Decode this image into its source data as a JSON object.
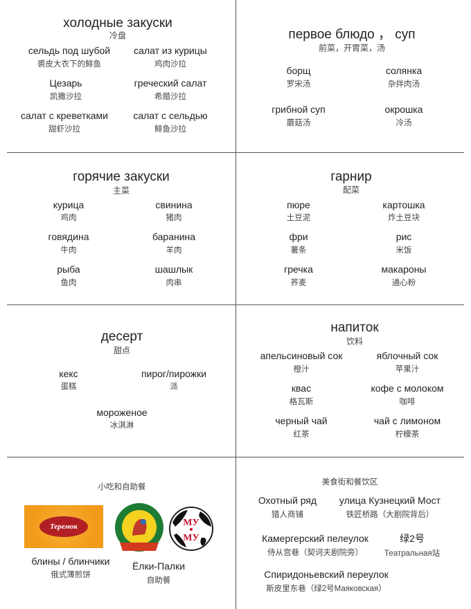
{
  "sections": [
    {
      "title": "холодные закуски",
      "subtitle": "冷盘",
      "items": [
        {
          "ru": "сельдь под шубой",
          "zh": "裘皮大衣下的鲱鱼"
        },
        {
          "ru": "салат из курицы",
          "zh": "鸡肉沙拉"
        },
        {
          "ru": "Цезарь",
          "zh": "凯撒沙拉"
        },
        {
          "ru": "греческий салат",
          "zh": "希腊沙拉"
        },
        {
          "ru": "салат с креветками",
          "zh": "甜虾沙拉"
        },
        {
          "ru": "салат с сельдью",
          "zh": "鲱鱼沙拉"
        }
      ]
    },
    {
      "title": "первое блюдо ， суп",
      "subtitle": "前菜，开胃菜，汤",
      "items": [
        {
          "ru": "борщ",
          "zh": "罗宋汤"
        },
        {
          "ru": "солянка",
          "zh": "杂拌肉汤"
        },
        {
          "ru": "грибной суп",
          "zh": "蘑菇汤"
        },
        {
          "ru": "окрошка",
          "zh": "冷汤"
        }
      ]
    },
    {
      "title": "горячие закуски",
      "subtitle": "主菜",
      "items": [
        {
          "ru": "курица",
          "zh": "鸡肉"
        },
        {
          "ru": "свинина",
          "zh": "猪肉"
        },
        {
          "ru": "говядина",
          "zh": "牛肉"
        },
        {
          "ru": "баранина",
          "zh": "羊肉"
        },
        {
          "ru": "рыба",
          "zh": "鱼肉"
        },
        {
          "ru": "шашлык",
          "zh": "肉串"
        }
      ]
    },
    {
      "title": "гарнир",
      "subtitle": "配菜",
      "items": [
        {
          "ru": "пюре",
          "zh": "土豆泥"
        },
        {
          "ru": "картошка",
          "zh": "炸土豆块"
        },
        {
          "ru": "фри",
          "zh": "薯条"
        },
        {
          "ru": "рис",
          "zh": "米饭"
        },
        {
          "ru": "гречка",
          "zh": "荞麦"
        },
        {
          "ru": "макароны",
          "zh": "通心粉"
        }
      ]
    },
    {
      "title": "десерт",
      "subtitle": "甜点",
      "items": [
        {
          "ru": "кекс",
          "zh": "蛋糕"
        },
        {
          "ru": "пирог/пирожки",
          "zh": "派"
        },
        {
          "ru": "мороженое",
          "zh": "冰淇淋"
        }
      ]
    },
    {
      "title": "напиток",
      "subtitle": "饮料",
      "items": [
        {
          "ru": "апельсиновый сок",
          "zh": "橙汁"
        },
        {
          "ru": "яблочный сок",
          "zh": "苹果汁"
        },
        {
          "ru": "квас",
          "zh": "格瓦斯"
        },
        {
          "ru": "кофе с молоком",
          "zh": "咖啡"
        },
        {
          "ru": "черный чай",
          "zh": "红茶"
        },
        {
          "ru": "чай с лимоном",
          "zh": "柠檬茶"
        }
      ]
    },
    {
      "title": "",
      "subtitle": "小吃和自助餐",
      "items": [
        {
          "ru": "блины / блинчики",
          "zh": "俄式薄煎饼"
        },
        {
          "ru": "Ёлки-Палки",
          "zh": "自助餐"
        }
      ]
    },
    {
      "title": "",
      "subtitle": "美食街和餐饮区",
      "items": [
        {
          "ru": "Охотный ряд",
          "zh": "猎人商铺"
        },
        {
          "ru": "улица Кузнецкий Мост",
          "zh": "铁匠桥路（大剧院背后）"
        },
        {
          "ru": "Камергерский пелеулок",
          "zh": "侍从宫巷（契诃夫剧院旁）"
        },
        {
          "ru": "绿2号",
          "zh": "Театральная站"
        },
        {
          "ru": "Спиридоньевский переулок",
          "zh": "斯皮里东巷（绿2号Маяковская）"
        }
      ]
    }
  ],
  "logos": {
    "teremok": "Теремок",
    "elki_palki": "ЁЛКИ-ПАЛКИ ТРАКТИР",
    "mumu": "МУ-МУ"
  },
  "colors": {
    "teremok_orange": "#f29a1a",
    "teremok_red": "#b11f24",
    "elki_green": "#1e7b34",
    "mumu_red": "#c8102e"
  }
}
